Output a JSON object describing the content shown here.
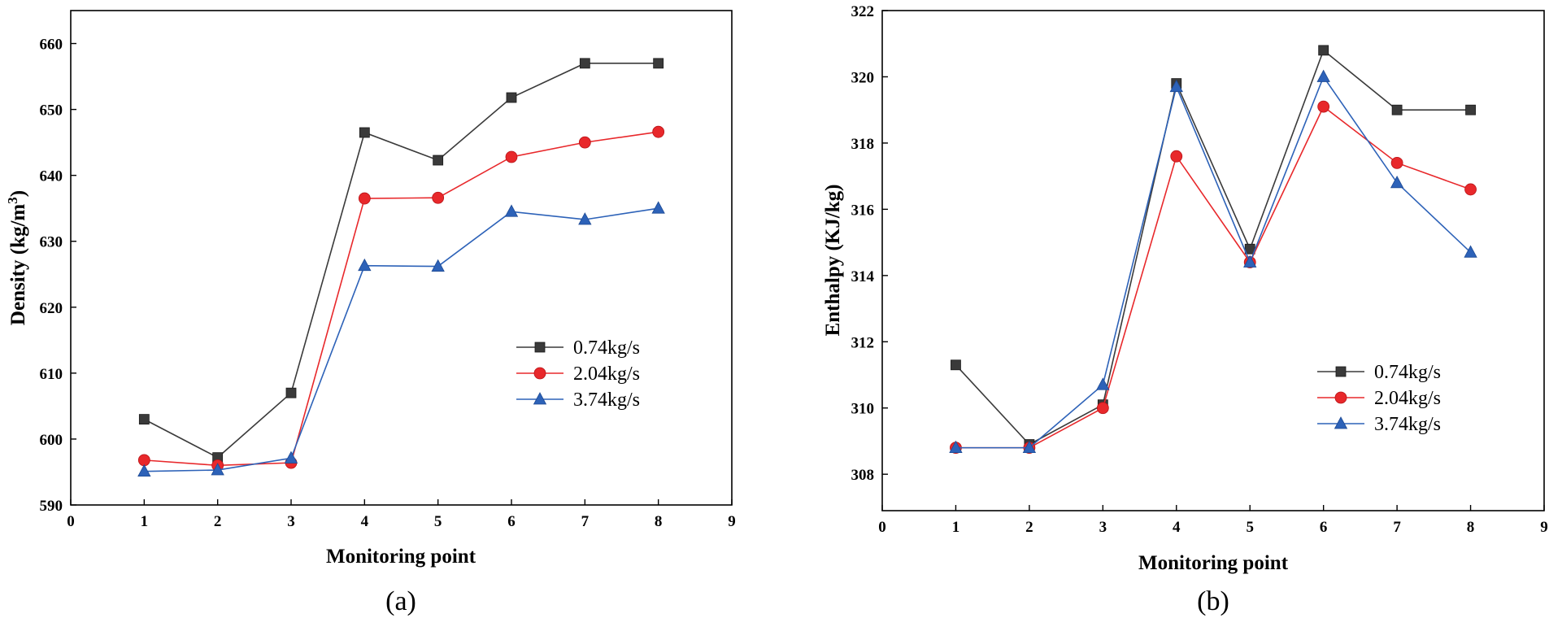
{
  "chart_data": [
    {
      "type": "line",
      "panel_label": "(a)",
      "xlabel": "Monitoring point",
      "ylabel_main": "Density (kg/m",
      "ylabel_sup": "3",
      "ylabel_end": ")",
      "xlim": [
        0,
        9
      ],
      "ylim": [
        590,
        665
      ],
      "xticks": [
        0,
        1,
        2,
        3,
        4,
        5,
        6,
        7,
        8,
        9
      ],
      "yticks": [
        590,
        600,
        610,
        620,
        630,
        640,
        650,
        660
      ],
      "legend_position": "center-right",
      "x": [
        1,
        2,
        3,
        4,
        5,
        6,
        7,
        8
      ],
      "series": [
        {
          "name": "0.74kg/s",
          "color": "#3a3a3a",
          "marker": "square",
          "values": [
            603.0,
            597.2,
            607.0,
            646.5,
            642.3,
            651.8,
            657.0,
            657.0
          ]
        },
        {
          "name": "2.04kg/s",
          "color": "#e8282b",
          "marker": "circle",
          "values": [
            596.8,
            596.0,
            596.4,
            636.5,
            636.6,
            642.8,
            645.0,
            646.6
          ]
        },
        {
          "name": "3.74kg/s",
          "color": "#2d62b8",
          "marker": "triangle",
          "values": [
            595.1,
            595.3,
            597.1,
            626.3,
            626.2,
            634.5,
            633.3,
            635.0
          ]
        }
      ]
    },
    {
      "type": "line",
      "panel_label": "(b)",
      "xlabel": "Monitoring point",
      "ylabel_main": "Enthalpy (KJ/kg)",
      "xlim": [
        0,
        9
      ],
      "ylim": [
        306.9,
        322
      ],
      "xticks": [
        0,
        1,
        2,
        3,
        4,
        5,
        6,
        7,
        8,
        9
      ],
      "yticks": [
        308,
        310,
        312,
        314,
        316,
        318,
        320,
        322
      ],
      "legend_position": "center-right",
      "x": [
        1,
        2,
        3,
        4,
        5,
        6,
        7,
        8
      ],
      "series": [
        {
          "name": "0.74kg/s",
          "color": "#3a3a3a",
          "marker": "square",
          "values": [
            311.3,
            308.9,
            310.1,
            319.8,
            314.8,
            320.8,
            319.0,
            319.0
          ]
        },
        {
          "name": "2.04kg/s",
          "color": "#e8282b",
          "marker": "circle",
          "values": [
            308.8,
            308.8,
            310.0,
            317.6,
            314.4,
            319.1,
            317.4,
            316.6
          ]
        },
        {
          "name": "3.74kg/s",
          "color": "#2d62b8",
          "marker": "triangle",
          "values": [
            308.8,
            308.8,
            310.7,
            319.7,
            314.4,
            320.0,
            316.8,
            314.7
          ]
        }
      ]
    }
  ]
}
